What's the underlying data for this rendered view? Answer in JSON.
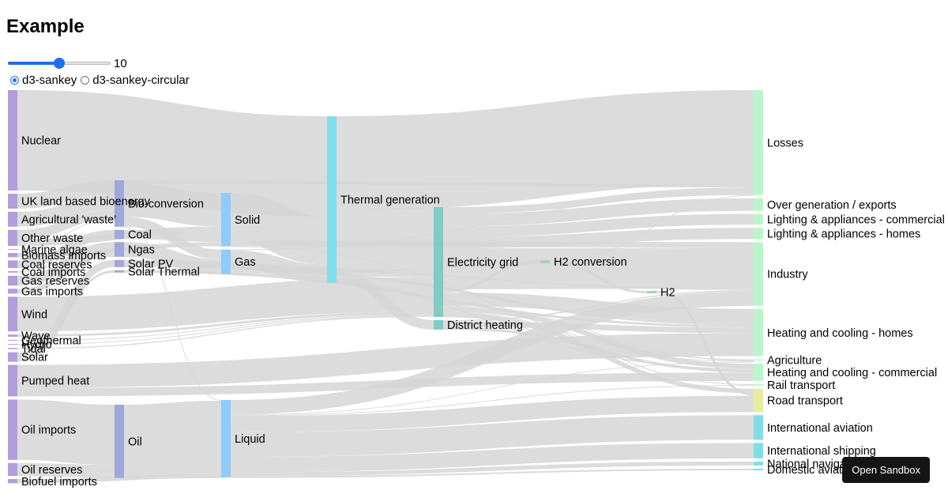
{
  "title": "Example",
  "controls": {
    "slider_value": 0.5,
    "slider_label": "10",
    "radio_options": [
      {
        "label": "d3-sankey",
        "checked": true
      },
      {
        "label": "d3-sankey-circular",
        "checked": false
      }
    ]
  },
  "sandbox_button": "Open Sandbox",
  "colors": {
    "source": "#b39ddb",
    "conversion": "#9fa8da",
    "carrier": "#90caf9",
    "generation": "#80deea",
    "grid": "#80cbc4",
    "hydrogen": "#a5d6a7",
    "sink": "#b9f6ca",
    "road": "#e6ee9c",
    "transport": "#80deea",
    "link": "#d6d6d6",
    "slider": "#1a73e8"
  },
  "chart_data": {
    "type": "sankey",
    "nodes": [
      {
        "id": "nuclear",
        "label": "Nuclear",
        "color": "source"
      },
      {
        "id": "bioenergy",
        "label": "UK land based bioenergy",
        "color": "source"
      },
      {
        "id": "agri_waste",
        "label": "Agricultural 'waste'",
        "color": "source"
      },
      {
        "id": "other_waste",
        "label": "Other waste",
        "color": "source"
      },
      {
        "id": "marine_algae",
        "label": "Marine algae",
        "color": "source"
      },
      {
        "id": "biomass_imports",
        "label": "Biomass imports",
        "color": "source"
      },
      {
        "id": "coal_reserves",
        "label": "Coal reserves",
        "color": "source"
      },
      {
        "id": "coal_imports",
        "label": "Coal imports",
        "color": "source"
      },
      {
        "id": "gas_reserves",
        "label": "Gas reserves",
        "color": "source"
      },
      {
        "id": "gas_imports",
        "label": "Gas imports",
        "color": "source"
      },
      {
        "id": "wind",
        "label": "Wind",
        "color": "source"
      },
      {
        "id": "wave",
        "label": "Wave",
        "color": "source"
      },
      {
        "id": "geothermal",
        "label": "Geothermal",
        "color": "source"
      },
      {
        "id": "hydro",
        "label": "Hydro",
        "color": "source"
      },
      {
        "id": "tidal",
        "label": "Tidal",
        "color": "source"
      },
      {
        "id": "solar",
        "label": "Solar",
        "color": "source"
      },
      {
        "id": "pumped_heat",
        "label": "Pumped heat",
        "color": "source"
      },
      {
        "id": "oil_imports",
        "label": "Oil imports",
        "color": "source"
      },
      {
        "id": "oil_reserves",
        "label": "Oil reserves",
        "color": "source"
      },
      {
        "id": "biofuel_imports",
        "label": "Biofuel imports",
        "color": "source"
      },
      {
        "id": "bio_conversion",
        "label": "Bio-conversion",
        "color": "conversion"
      },
      {
        "id": "coal",
        "label": "Coal",
        "color": "conversion"
      },
      {
        "id": "ngas",
        "label": "Ngas",
        "color": "conversion"
      },
      {
        "id": "solar_pv",
        "label": "Solar PV",
        "color": "conversion"
      },
      {
        "id": "solar_thermal",
        "label": "Solar Thermal",
        "color": "conversion"
      },
      {
        "id": "oil",
        "label": "Oil",
        "color": "conversion"
      },
      {
        "id": "solid",
        "label": "Solid",
        "color": "carrier"
      },
      {
        "id": "gas",
        "label": "Gas",
        "color": "carrier"
      },
      {
        "id": "liquid",
        "label": "Liquid",
        "color": "carrier"
      },
      {
        "id": "thermal_generation",
        "label": "Thermal generation",
        "color": "generation"
      },
      {
        "id": "electricity_grid",
        "label": "Electricity grid",
        "color": "grid"
      },
      {
        "id": "district_heating",
        "label": "District heating",
        "color": "grid"
      },
      {
        "id": "h2_conversion",
        "label": "H2 conversion",
        "color": "hydrogen"
      },
      {
        "id": "h2",
        "label": "H2",
        "color": "hydrogen"
      },
      {
        "id": "losses",
        "label": "Losses",
        "color": "sink"
      },
      {
        "id": "over_generation",
        "label": "Over generation / exports",
        "color": "sink"
      },
      {
        "id": "lighting_commercial",
        "label": "Lighting & appliances - commercial",
        "color": "sink"
      },
      {
        "id": "lighting_homes",
        "label": "Lighting & appliances - homes",
        "color": "sink"
      },
      {
        "id": "industry",
        "label": "Industry",
        "color": "sink"
      },
      {
        "id": "heating_homes",
        "label": "Heating and cooling - homes",
        "color": "sink"
      },
      {
        "id": "agriculture",
        "label": "Agriculture",
        "color": "sink"
      },
      {
        "id": "heating_commercial",
        "label": "Heating and cooling - commercial",
        "color": "sink"
      },
      {
        "id": "rail_transport",
        "label": "Rail transport",
        "color": "sink"
      },
      {
        "id": "road_transport",
        "label": "Road transport",
        "color": "road"
      },
      {
        "id": "international_aviation",
        "label": "International aviation",
        "color": "transport"
      },
      {
        "id": "international_shipping",
        "label": "International shipping",
        "color": "transport"
      },
      {
        "id": "national_navigation",
        "label": "National navigation",
        "color": "transport"
      },
      {
        "id": "domestic_aviation",
        "label": "Domestic aviation",
        "color": "transport"
      }
    ],
    "links": [
      {
        "source": "nuclear",
        "target": "thermal_generation",
        "value": 839.978
      },
      {
        "source": "bioenergy",
        "target": "bio_conversion",
        "value": 124.729
      },
      {
        "source": "agri_waste",
        "target": "bio_conversion",
        "value": 124.729
      },
      {
        "source": "other_waste",
        "target": "bio_conversion",
        "value": 77.81
      },
      {
        "source": "other_waste",
        "target": "solid",
        "value": 56.587
      },
      {
        "source": "marine_algae",
        "target": "bio_conversion",
        "value": 4.375
      },
      {
        "source": "biomass_imports",
        "target": "solid",
        "value": 35
      },
      {
        "source": "coal_reserves",
        "target": "coal",
        "value": 63.965
      },
      {
        "source": "coal_imports",
        "target": "coal",
        "value": 11.606
      },
      {
        "source": "gas_reserves",
        "target": "ngas",
        "value": 82.233
      },
      {
        "source": "gas_imports",
        "target": "ngas",
        "value": 40.719
      },
      {
        "source": "wind",
        "target": "electricity_grid",
        "value": 289.366
      },
      {
        "source": "wave",
        "target": "electricity_grid",
        "value": 19.013
      },
      {
        "source": "geothermal",
        "target": "electricity_grid",
        "value": 7.013
      },
      {
        "source": "hydro",
        "target": "electricity_grid",
        "value": 6.995
      },
      {
        "source": "tidal",
        "target": "electricity_grid",
        "value": 9.452
      },
      {
        "source": "solar",
        "target": "solar_pv",
        "value": 59.901
      },
      {
        "source": "solar",
        "target": "solar_thermal",
        "value": 19.263
      },
      {
        "source": "pumped_heat",
        "target": "heating_homes",
        "value": 193.026
      },
      {
        "source": "pumped_heat",
        "target": "heating_commercial",
        "value": 70.672
      },
      {
        "source": "oil_imports",
        "target": "oil",
        "value": 504.287
      },
      {
        "source": "oil_reserves",
        "target": "oil",
        "value": 107.703
      },
      {
        "source": "biofuel_imports",
        "target": "liquid",
        "value": 35
      },
      {
        "source": "bio_conversion",
        "target": "solid",
        "value": 280.322
      },
      {
        "source": "bio_conversion",
        "target": "gas",
        "value": 81.144
      },
      {
        "source": "bio_conversion",
        "target": "liquid",
        "value": 0.597
      },
      {
        "source": "bio_conversion",
        "target": "losses",
        "value": 26.862
      },
      {
        "source": "coal",
        "target": "solid",
        "value": 75.571
      },
      {
        "source": "ngas",
        "target": "gas",
        "value": 122.952
      },
      {
        "source": "solar_pv",
        "target": "electricity_grid",
        "value": 59.901
      },
      {
        "source": "solar_thermal",
        "target": "heating_homes",
        "value": 19.263
      },
      {
        "source": "oil",
        "target": "liquid",
        "value": 611.99
      },
      {
        "source": "solid",
        "target": "thermal_generation",
        "value": 400.12
      },
      {
        "source": "solid",
        "target": "industry",
        "value": 46.477
      },
      {
        "source": "solid",
        "target": "agriculture",
        "value": 0.882
      },
      {
        "source": "gas",
        "target": "thermal_generation",
        "value": 151.891
      },
      {
        "source": "gas",
        "target": "heating_homes",
        "value": 22.505
      },
      {
        "source": "gas",
        "target": "industry",
        "value": 11.5
      },
      {
        "source": "gas",
        "target": "losses",
        "value": 1.401
      },
      {
        "source": "gas",
        "target": "agriculture",
        "value": 2.096
      },
      {
        "source": "gas",
        "target": "heating_commercial",
        "value": 9.452
      },
      {
        "source": "liquid",
        "target": "industry",
        "value": 121.066
      },
      {
        "source": "liquid",
        "target": "road_transport",
        "value": 135.835
      },
      {
        "source": "liquid",
        "target": "international_aviation",
        "value": 206.1
      },
      {
        "source": "liquid",
        "target": "international_shipping",
        "value": 128.69
      },
      {
        "source": "liquid",
        "target": "national_navigation",
        "value": 33.218
      },
      {
        "source": "liquid",
        "target": "domestic_aviation",
        "value": 14.458
      },
      {
        "source": "liquid",
        "target": "rail_transport",
        "value": 4.413
      },
      {
        "source": "liquid",
        "target": "agriculture",
        "value": 3.64
      },
      {
        "source": "thermal_generation",
        "target": "electricity_grid",
        "value": 525.531
      },
      {
        "source": "thermal_generation",
        "target": "losses",
        "value": 787.129
      },
      {
        "source": "thermal_generation",
        "target": "district_heating",
        "value": 79.329
      },
      {
        "source": "electricity_grid",
        "target": "over_generation",
        "value": 104.453
      },
      {
        "source": "electricity_grid",
        "target": "heating_homes",
        "value": 113.726
      },
      {
        "source": "electricity_grid",
        "target": "h2_conversion",
        "value": 27.14
      },
      {
        "source": "electricity_grid",
        "target": "industry",
        "value": 342.165
      },
      {
        "source": "electricity_grid",
        "target": "road_transport",
        "value": 37.797
      },
      {
        "source": "electricity_grid",
        "target": "agriculture",
        "value": 4.412
      },
      {
        "source": "electricity_grid",
        "target": "heating_commercial",
        "value": 40.858
      },
      {
        "source": "electricity_grid",
        "target": "losses",
        "value": 56.691
      },
      {
        "source": "electricity_grid",
        "target": "rail_transport",
        "value": 7.863
      },
      {
        "source": "electricity_grid",
        "target": "lighting_commercial",
        "value": 90.008
      },
      {
        "source": "electricity_grid",
        "target": "lighting_homes",
        "value": 93.494
      },
      {
        "source": "district_heating",
        "target": "industry",
        "value": 10.639
      },
      {
        "source": "district_heating",
        "target": "heating_commercial",
        "value": 22.505
      },
      {
        "source": "district_heating",
        "target": "heating_homes",
        "value": 46.184
      },
      {
        "source": "h2_conversion",
        "target": "h2",
        "value": 20.897
      },
      {
        "source": "h2_conversion",
        "target": "losses",
        "value": 6.242
      },
      {
        "source": "h2",
        "target": "road_transport",
        "value": 20.897
      }
    ]
  }
}
